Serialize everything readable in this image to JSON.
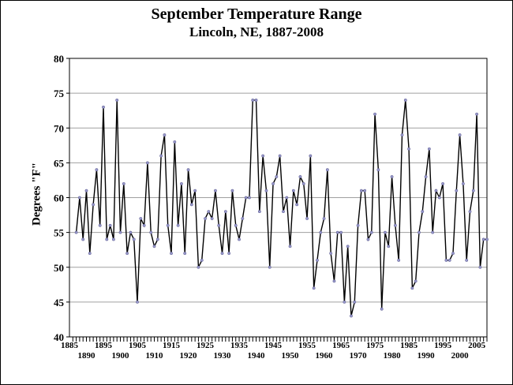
{
  "chart_data": {
    "type": "line",
    "title": "September Temperature Range",
    "subtitle": "Lincoln, NE, 1887-2008",
    "xlabel": "",
    "ylabel": "Degrees \"F\"",
    "ylim": [
      40,
      80
    ],
    "yticks": [
      40,
      45,
      50,
      55,
      60,
      65,
      70,
      75,
      80
    ],
    "xlim": [
      1885,
      2008
    ],
    "xticks_upper": [
      1885,
      1895,
      1905,
      1915,
      1925,
      1935,
      1945,
      1955,
      1965,
      1975,
      1985,
      1995,
      2005
    ],
    "xticks_lower": [
      1890,
      1900,
      1910,
      1920,
      1930,
      1940,
      1950,
      1960,
      1970,
      1980,
      1990,
      2000
    ],
    "grid": "horizontal",
    "legend": "none",
    "line_color": "#000000",
    "marker_color": "#9999cc",
    "series": [
      {
        "x_start": 1887,
        "values": [
          55,
          60,
          54,
          61,
          52,
          59,
          64,
          56,
          73,
          54,
          56,
          54,
          74,
          55,
          62,
          52,
          55,
          54,
          45,
          57,
          56,
          65,
          55,
          53,
          54,
          66,
          69,
          56,
          52,
          68,
          56,
          62,
          52,
          64,
          59,
          61,
          50,
          51,
          57,
          58,
          57,
          61,
          56,
          52,
          58,
          52,
          61,
          56,
          54,
          57,
          60,
          60,
          74,
          74,
          58,
          66,
          61,
          50,
          62,
          63,
          66,
          58,
          60,
          53,
          61,
          59,
          63,
          62,
          57,
          66,
          47,
          51,
          55,
          57,
          64,
          52,
          48,
          55,
          55,
          45,
          53,
          43,
          45,
          56,
          61,
          61,
          54,
          55,
          72,
          64,
          44,
          55,
          53,
          63,
          56,
          51,
          69,
          74,
          67,
          47,
          48,
          55,
          58,
          63,
          67,
          55,
          61,
          60,
          62,
          51,
          51,
          52,
          61,
          69,
          62,
          51,
          58,
          61,
          72,
          50,
          54,
          54
        ]
      }
    ]
  }
}
